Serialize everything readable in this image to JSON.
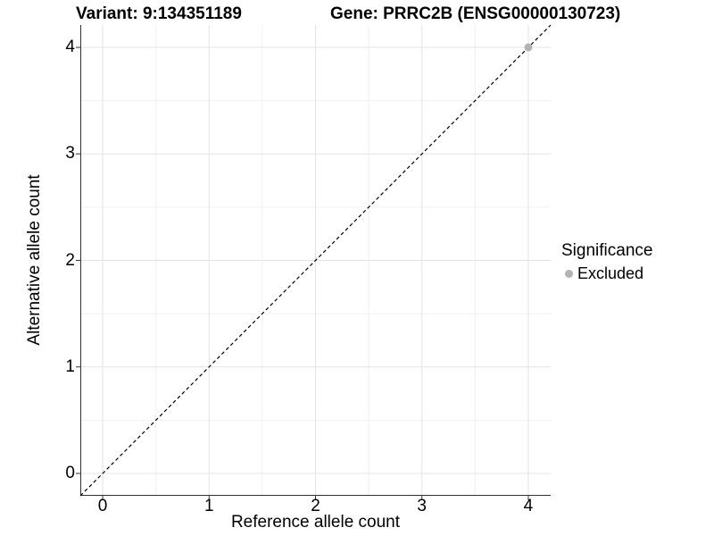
{
  "header": {
    "variant_title": "Variant: 9:134351189",
    "gene_title": "Gene: PRRC2B (ENSG00000130723)"
  },
  "chart_data": {
    "type": "scatter",
    "xlabel": "Reference allele count",
    "ylabel": "Alternative allele count",
    "xlim": [
      -0.21,
      4.21
    ],
    "ylim": [
      -0.21,
      4.21
    ],
    "x_ticks": [
      0,
      1,
      2,
      3,
      4
    ],
    "y_ticks": [
      0,
      1,
      2,
      3,
      4
    ],
    "x_minor_ticks": [
      0.5,
      1.5,
      2.5,
      3.5
    ],
    "y_minor_ticks": [
      0.5,
      1.5,
      2.5,
      3.5
    ],
    "grid": true,
    "series": [
      {
        "name": "Excluded",
        "color": "#b3b3b3",
        "points": [
          {
            "x": 4,
            "y": 4
          }
        ]
      }
    ],
    "reference_line": {
      "slope": 1,
      "intercept": 0,
      "style": "dashed",
      "color": "#000000"
    }
  },
  "legend": {
    "title": "Significance",
    "position": "right",
    "items": [
      {
        "label": "Excluded",
        "color": "#b3b3b3",
        "marker": "circle"
      }
    ]
  },
  "colors": {
    "background": "#ffffff",
    "grid_major": "#e4e4e4",
    "grid_minor": "#f1f1f1",
    "axis_line": "#333333",
    "tick_mark": "#333333",
    "text": "#000000"
  }
}
